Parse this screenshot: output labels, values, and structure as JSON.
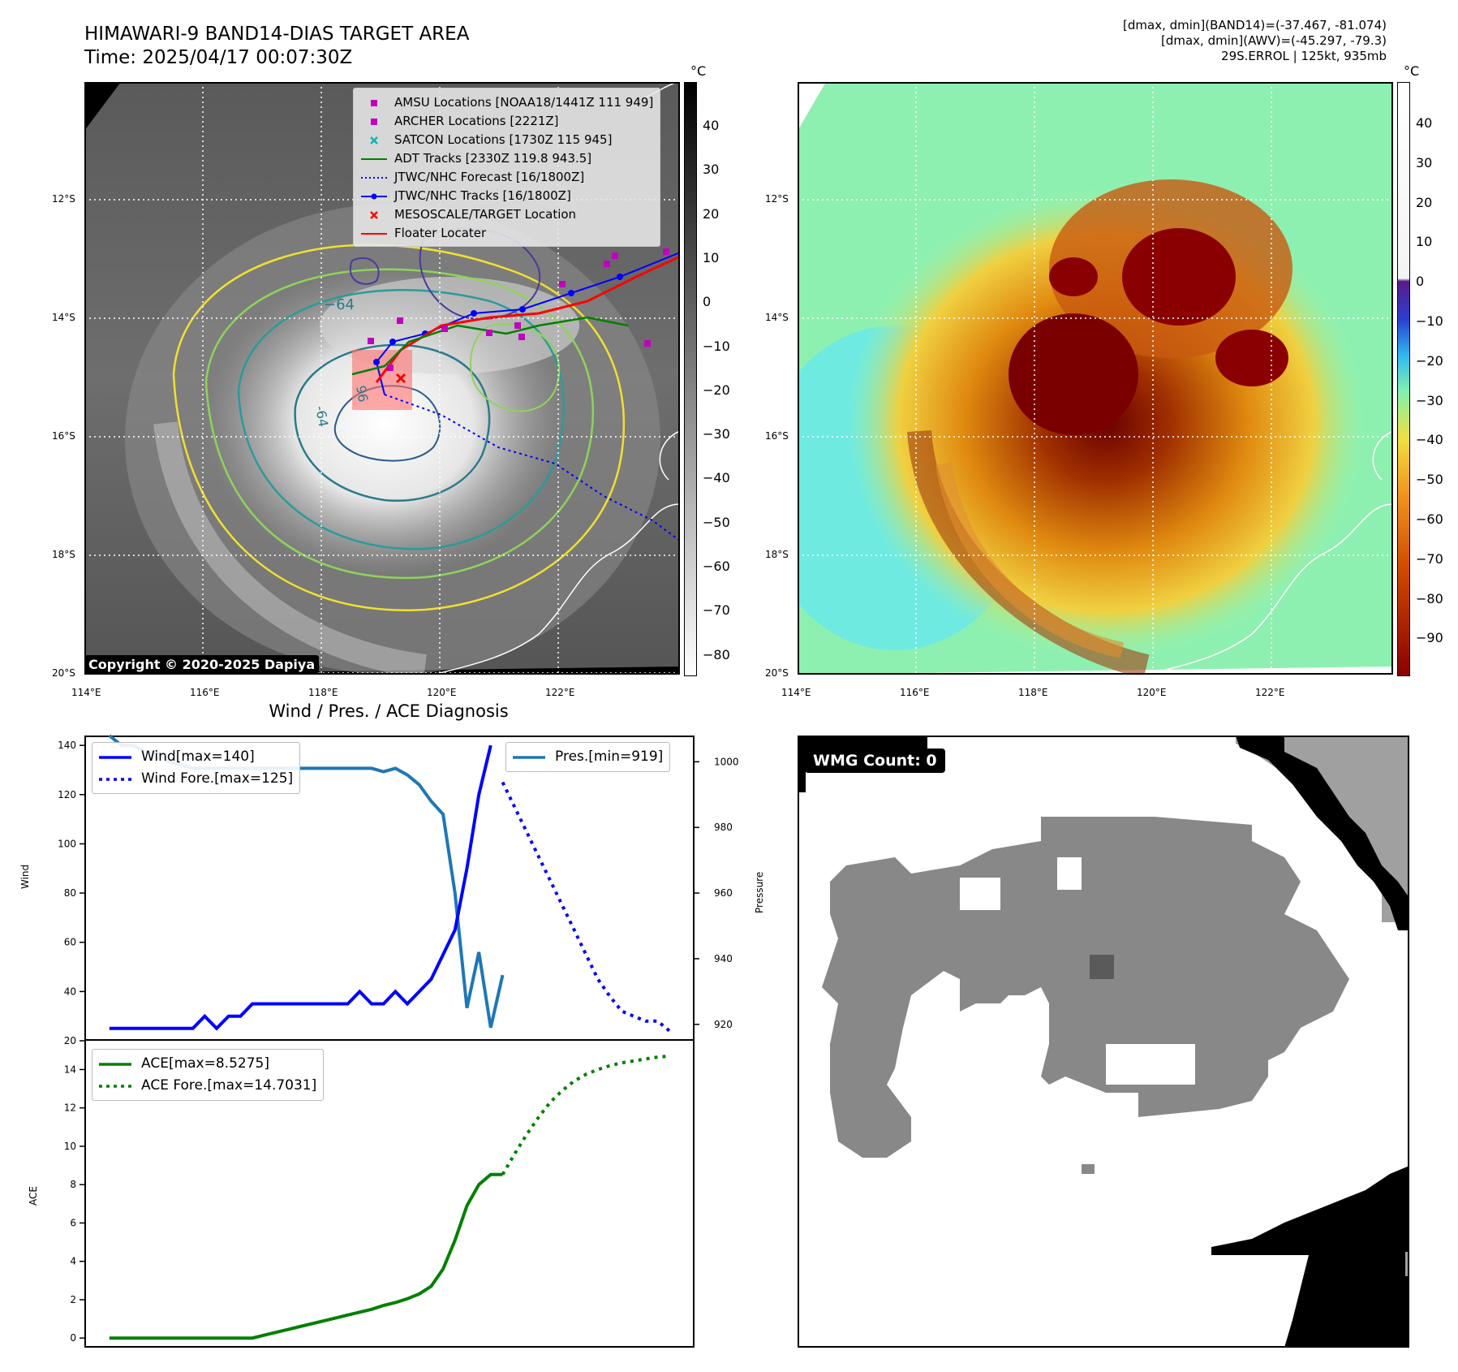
{
  "header": {
    "title_line1": "HIMAWARI-9 BAND14-DIAS TARGET AREA",
    "title_line2": "Time: 2025/04/17 00:07:30Z",
    "info_line1": "[dmax, dmin](BAND14)=(-37.467, -81.074)",
    "info_line2": "[dmax, dmin](AWV)=(-45.297, -79.3)",
    "info_line3": "29S.ERROL | 125kt, 935mb"
  },
  "map": {
    "lat_labels": [
      "12°S",
      "14°S",
      "16°S",
      "18°S",
      "20°S"
    ],
    "lon_labels": [
      "114°E",
      "116°E",
      "118°E",
      "120°E",
      "122°E"
    ],
    "copyright": "Copyright © 2020-2025 Dapiya",
    "contour_labels": [
      "−64",
      "-64",
      "96"
    ],
    "legend": [
      {
        "label": "AMSU Locations [NOAA18/1441Z 111 949]",
        "symbol": "square",
        "color": "#c000c0"
      },
      {
        "label": "ARCHER Locations [2221Z]",
        "symbol": "square",
        "color": "#c000c0"
      },
      {
        "label": "SATCON Locations [1730Z 115 945]",
        "symbol": "x",
        "color": "#00b8b8"
      },
      {
        "label": "ADT Tracks [2330Z 119.8 943.5]",
        "symbol": "line",
        "color": "#008000"
      },
      {
        "label": "JTWC/NHC Forecast [16/1800Z]",
        "symbol": "dotted",
        "color": "#0000ff"
      },
      {
        "label": "JTWC/NHC Tracks [16/1800Z]",
        "symbol": "line-dot",
        "color": "#0000ff"
      },
      {
        "label": "MESOSCALE/TARGET Location",
        "symbol": "x",
        "color": "#ff0000"
      },
      {
        "label": "Floater Locater",
        "symbol": "line",
        "color": "#ff0000"
      }
    ]
  },
  "colorbar_left": {
    "unit": "°C",
    "ticks": [
      "40",
      "30",
      "20",
      "10",
      "0",
      "−10",
      "−20",
      "−30",
      "−40",
      "−50",
      "−60",
      "−70",
      "−80"
    ]
  },
  "colorbar_right": {
    "unit": "°C",
    "ticks": [
      "40",
      "30",
      "20",
      "10",
      "0",
      "−10",
      "−20",
      "−30",
      "−40",
      "−50",
      "−60",
      "−70",
      "−80",
      "−90"
    ]
  },
  "diagnosis": {
    "title": "Wind / Pres. / ACE Diagnosis",
    "wind_ylabel": "Wind",
    "pres_ylabel": "Pressure",
    "ace_ylabel": "ACE",
    "wind_legend": "Wind[max=140]",
    "wind_fore_legend": "Wind Fore.[max=125]",
    "pres_legend": "Pres.[min=919]",
    "ace_legend": "ACE[max=8.5275]",
    "ace_fore_legend": "ACE Fore.[max=14.7031]",
    "wind_ticks": [
      "140",
      "120",
      "100",
      "80",
      "60",
      "40",
      "20"
    ],
    "pres_ticks": [
      "1000",
      "980",
      "960",
      "940",
      "920"
    ],
    "ace_ticks": [
      "14",
      "12",
      "10",
      "8",
      "6",
      "4",
      "2",
      "0"
    ]
  },
  "chart_data": [
    {
      "type": "line",
      "title": "Wind / Pres. / ACE Diagnosis",
      "xlabel": "",
      "ylabel": "Wind",
      "ylim": [
        20,
        144
      ],
      "x": [
        0,
        1,
        2,
        3,
        4,
        5,
        6,
        7,
        8,
        9,
        10,
        11,
        12,
        13,
        14,
        15,
        16,
        17,
        18,
        19,
        20,
        21,
        22,
        23,
        24,
        25,
        26,
        27,
        28,
        29,
        30,
        31,
        32
      ],
      "series": [
        {
          "name": "Wind[max=140]",
          "x": [
            0,
            1,
            2,
            3,
            4,
            5,
            6,
            7,
            8,
            9,
            10,
            11,
            12,
            13,
            14,
            15,
            16,
            17,
            18,
            19,
            20,
            21,
            22,
            23,
            24,
            25,
            26,
            27,
            28,
            29,
            30,
            31,
            32
          ],
          "values": [
            25,
            25,
            25,
            25,
            25,
            25,
            25,
            25,
            30,
            25,
            30,
            30,
            35,
            35,
            35,
            35,
            35,
            35,
            35,
            35,
            35,
            40,
            35,
            35,
            40,
            35,
            40,
            45,
            55,
            65,
            90,
            120,
            140
          ]
        },
        {
          "name": "Wind Fore.[max=125]",
          "x": [
            33,
            34,
            35,
            36,
            37,
            38,
            39,
            40,
            41,
            42,
            43,
            44,
            45,
            46,
            47
          ],
          "values": [
            125,
            115,
            105,
            95,
            85,
            75,
            65,
            55,
            45,
            38,
            32,
            30,
            28,
            28,
            24
          ]
        }
      ]
    },
    {
      "type": "line",
      "ylabel": "Pressure",
      "ylim": [
        915,
        1008
      ],
      "series": [
        {
          "name": "Pres.[min=919]",
          "x": [
            0,
            1,
            2,
            3,
            4,
            5,
            6,
            7,
            8,
            9,
            10,
            11,
            12,
            13,
            14,
            15,
            16,
            17,
            18,
            19,
            20,
            21,
            22,
            23,
            24,
            25,
            26,
            27,
            28,
            29,
            30,
            31,
            32,
            33
          ],
          "values": [
            1008,
            1005,
            1005,
            1003,
            1003,
            1000,
            999,
            998,
            998,
            998,
            998,
            998,
            998,
            998,
            998,
            998,
            998,
            998,
            998,
            998,
            998,
            998,
            998,
            997,
            998,
            996,
            993,
            988,
            984,
            960,
            925,
            942,
            919,
            935
          ]
        }
      ]
    },
    {
      "type": "line",
      "ylabel": "ACE",
      "ylim": [
        -0.5,
        15.5
      ],
      "series": [
        {
          "name": "ACE[max=8.5275]",
          "x": [
            0,
            1,
            2,
            3,
            4,
            5,
            6,
            7,
            8,
            9,
            10,
            11,
            12,
            13,
            14,
            15,
            16,
            17,
            18,
            19,
            20,
            21,
            22,
            23,
            24,
            25,
            26,
            27,
            28,
            29,
            30,
            31,
            32,
            33
          ],
          "values": [
            0,
            0,
            0,
            0,
            0,
            0,
            0,
            0,
            0,
            0,
            0,
            0,
            0,
            0.15,
            0.3,
            0.45,
            0.6,
            0.75,
            0.9,
            1.05,
            1.2,
            1.35,
            1.5,
            1.7,
            1.85,
            2.05,
            2.3,
            2.7,
            3.6,
            5.1,
            6.9,
            8.0,
            8.5275,
            8.5275
          ]
        },
        {
          "name": "ACE Fore.[max=14.7031]",
          "x": [
            33,
            34,
            35,
            36,
            37,
            38,
            39,
            40,
            41,
            42,
            43,
            44,
            45,
            46,
            47
          ],
          "values": [
            8.5275,
            9.6,
            10.6,
            11.5,
            12.3,
            12.9,
            13.4,
            13.75,
            14.0,
            14.2,
            14.35,
            14.45,
            14.55,
            14.65,
            14.7031
          ]
        }
      ]
    }
  ],
  "wmg": {
    "label": "WMG Count: 0"
  }
}
